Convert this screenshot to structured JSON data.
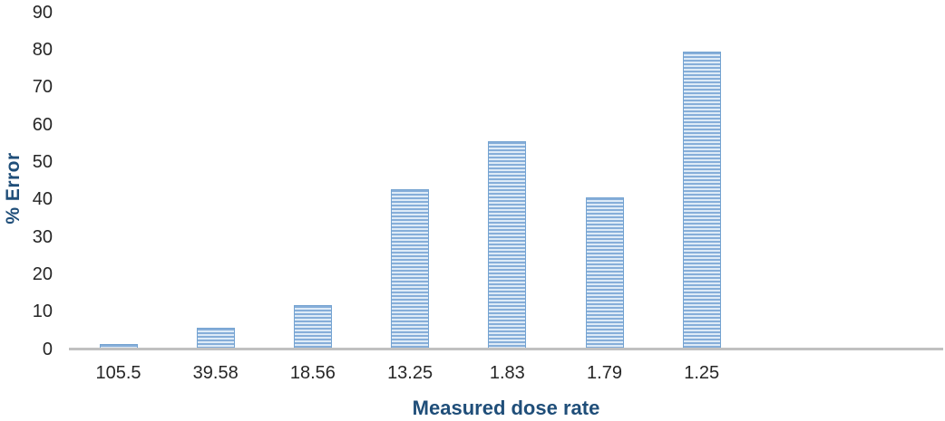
{
  "chart_data": {
    "type": "bar",
    "title": "",
    "xlabel": "Measured dose rate",
    "ylabel": "% Error",
    "categories": [
      "105.5",
      "39.58",
      "18.56",
      "13.25",
      "1.83",
      "1.79",
      "1.25"
    ],
    "values": [
      1.2,
      5.6,
      11.5,
      42.5,
      55.3,
      40.5,
      79.4
    ],
    "yticks": [
      0,
      10,
      20,
      30,
      40,
      50,
      60,
      70,
      80,
      90
    ],
    "ylim": [
      0,
      90
    ],
    "grid": false,
    "legend": null,
    "bar_pattern": "light-horizontal-stripes",
    "colors": {
      "bar_stripe_dark": "#86AED9",
      "bar_stripe_light": "#DEEBF7",
      "bar_border": "#74A3D1",
      "axis_line": "#C0C0C0",
      "axis_title": "#1F4E79",
      "tick_label": "#262626"
    }
  }
}
